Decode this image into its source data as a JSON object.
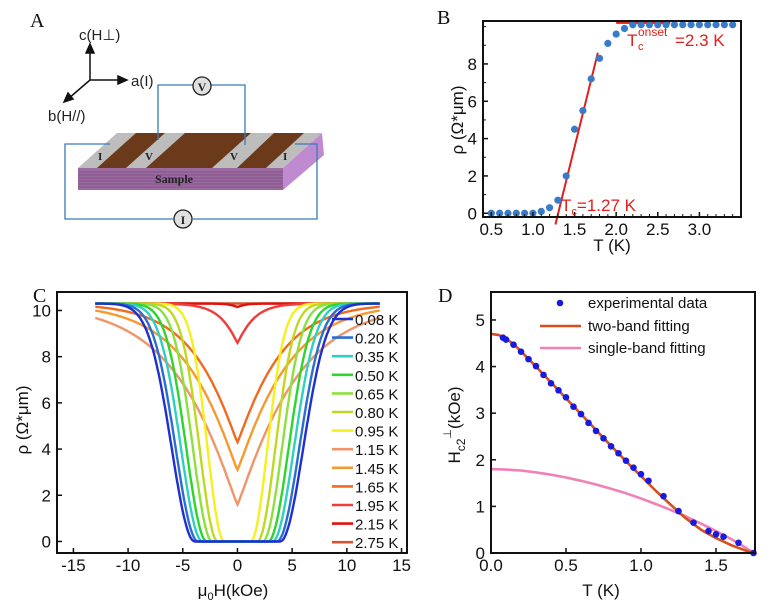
{
  "panels": {
    "A": {
      "letter": "A",
      "axes": {
        "c": "c(H⊥)",
        "a": "a(I)",
        "b": "b(H//)"
      },
      "sample_label": "Sample",
      "contacts": [
        "I",
        "V",
        "V",
        "I"
      ],
      "voltmeter": "V",
      "ammeter": "I"
    },
    "B": {
      "letter": "B"
    },
    "C": {
      "letter": "C"
    },
    "D": {
      "letter": "D"
    }
  },
  "chart_data": [
    {
      "id": "B",
      "type": "scatter",
      "title": "",
      "xlabel": "T (K)",
      "ylabel": "ρ (Ω*μm)",
      "xlim": [
        0.4,
        3.5
      ],
      "ylim": [
        -0.2,
        10.3
      ],
      "xticks": [
        0.5,
        1.0,
        1.5,
        2.0,
        2.5,
        3.0
      ],
      "xtick_labels": [
        "0.5",
        "1.0",
        "1.5",
        "2.0",
        "2.5",
        "3.0"
      ],
      "yticks": [
        0,
        2,
        4,
        6,
        8
      ],
      "ytick_labels": [
        "0",
        "2",
        "4",
        "6",
        "8"
      ],
      "marker_color": "#3a7bc8",
      "x": [
        0.5,
        0.6,
        0.7,
        0.8,
        0.9,
        1.0,
        1.1,
        1.2,
        1.3,
        1.4,
        1.5,
        1.6,
        1.7,
        1.8,
        1.9,
        2.0,
        2.1,
        2.2,
        2.3,
        2.4,
        2.5,
        2.6,
        2.7,
        2.8,
        2.9,
        3.0,
        3.1,
        3.2,
        3.3,
        3.4
      ],
      "y": [
        0,
        0,
        0,
        0,
        0,
        0,
        0.1,
        0.3,
        0.7,
        2.0,
        4.5,
        5.5,
        7.2,
        8.3,
        9.1,
        9.6,
        9.9,
        10.1,
        10.1,
        10.1,
        10.1,
        10.1,
        10.1,
        10.1,
        10.1,
        10.1,
        10.1,
        10.1,
        10.1,
        10.1
      ],
      "fit_lines": [
        {
          "name": "transition-fit",
          "color": "#e0201c",
          "x": [
            1.27,
            1.78
          ],
          "y": [
            -0.6,
            8.6
          ]
        },
        {
          "name": "onset-fit",
          "color": "#e0201c",
          "x": [
            2.0,
            2.65
          ],
          "y": [
            10.2,
            10.2
          ]
        }
      ],
      "annotations": [
        {
          "text": "T",
          "sub": "c",
          "value": "=1.27 K"
        },
        {
          "text": "T",
          "sub": "c",
          "sup": "onset",
          "value": "=2.3 K"
        }
      ]
    },
    {
      "id": "C",
      "type": "line",
      "title": "",
      "xlabel": "μ0H(kOe)",
      "xlabel_parts": {
        "mu": "μ",
        "sub": "0",
        "rest": "H(kOe)"
      },
      "ylabel": "ρ (Ω*μm)",
      "xlim": [
        -16.5,
        15.5
      ],
      "ylim": [
        -0.5,
        10.8
      ],
      "xticks": [
        -15,
        -10,
        -5,
        0,
        5,
        10,
        15
      ],
      "xtick_labels": [
        "-15",
        "-10",
        "-5",
        "0",
        "5",
        "10",
        "15"
      ],
      "yticks": [
        0,
        2,
        4,
        6,
        8,
        10
      ],
      "ytick_labels": [
        "0",
        "2",
        "4",
        "6",
        "8",
        "10"
      ],
      "x_range": [
        -13,
        13
      ],
      "rho_normal": 10.3,
      "legend_position": "right",
      "series": [
        {
          "name": "0.08 K",
          "color": "#1f2fd0",
          "min": 0.0,
          "hc": 3.9
        },
        {
          "name": "0.20 K",
          "color": "#2a6fd0",
          "min": 0.0,
          "hc": 3.6
        },
        {
          "name": "0.35 K",
          "color": "#2fd0c0",
          "min": 0.0,
          "hc": 3.2
        },
        {
          "name": "0.50 K",
          "color": "#2ed52e",
          "min": 0.0,
          "hc": 2.8
        },
        {
          "name": "0.65 K",
          "color": "#8ee040",
          "min": 0.0,
          "hc": 2.3
        },
        {
          "name": "0.80 K",
          "color": "#c0d820",
          "min": 0.0,
          "hc": 1.8
        },
        {
          "name": "0.95 K",
          "color": "#f5f020",
          "min": 0.0,
          "hc": 1.2
        },
        {
          "name": "1.15 K",
          "color": "#f0956a",
          "min": 1.6,
          "hc": 0.0
        },
        {
          "name": "1.45 K",
          "color": "#f59a30",
          "min": 3.1,
          "hc": 0.0
        },
        {
          "name": "1.65 K",
          "color": "#f06a20",
          "min": 4.3,
          "hc": 0.0
        },
        {
          "name": "1.95 K",
          "color": "#f03c3c",
          "min": 8.6,
          "hc": 0.0
        },
        {
          "name": "2.15 K",
          "color": "#e01010",
          "min": 10.15,
          "hc": 0.0
        },
        {
          "name": "2.75 K",
          "color": "#d05530",
          "min": 10.3,
          "hc": 0.0
        }
      ]
    },
    {
      "id": "D",
      "type": "scatter",
      "title": "",
      "xlabel": "T (K)",
      "ylabel": "H⊥c2 (kOe)",
      "ylabel_parts": {
        "main": "H",
        "sub": "c2",
        "sup": "⊥",
        "rest": "(kOe)"
      },
      "xlim": [
        0.0,
        1.76
      ],
      "ylim": [
        0,
        5.6
      ],
      "xticks": [
        0.0,
        0.5,
        1.0,
        1.5
      ],
      "xtick_labels": [
        "0.0",
        "0.5",
        "1.0",
        "1.5"
      ],
      "yticks": [
        0,
        1,
        2,
        3,
        4,
        5
      ],
      "ytick_labels": [
        "0",
        "1",
        "2",
        "3",
        "4",
        "5"
      ],
      "legend_position": "top-right",
      "legend": [
        {
          "label": "experimental data",
          "kind": "marker",
          "color": "#1a1adc"
        },
        {
          "label": "two-band fitting",
          "kind": "line",
          "color": "#d4501c"
        },
        {
          "label": "single-band fitting",
          "kind": "line",
          "color": "#f080b8"
        }
      ],
      "experimental": {
        "x": [
          0.08,
          0.1,
          0.15,
          0.2,
          0.25,
          0.3,
          0.35,
          0.4,
          0.45,
          0.5,
          0.55,
          0.6,
          0.65,
          0.7,
          0.75,
          0.8,
          0.85,
          0.9,
          0.95,
          1.0,
          1.05,
          1.15,
          1.25,
          1.35,
          1.45,
          1.5,
          1.55,
          1.65,
          1.75
        ],
        "y": [
          4.62,
          4.58,
          4.47,
          4.32,
          4.16,
          4.01,
          3.82,
          3.64,
          3.49,
          3.34,
          3.14,
          2.98,
          2.79,
          2.62,
          2.46,
          2.29,
          2.14,
          1.98,
          1.83,
          1.69,
          1.55,
          1.22,
          0.9,
          0.65,
          0.47,
          0.4,
          0.35,
          0.22,
          0.0
        ]
      },
      "two_band": {
        "x": [
          0.0,
          0.05,
          0.1,
          0.15,
          0.2,
          0.3,
          0.4,
          0.5,
          0.6,
          0.7,
          0.8,
          0.9,
          1.0,
          1.1,
          1.2,
          1.3,
          1.4,
          1.5,
          1.6,
          1.7,
          1.75
        ],
        "y": [
          4.7,
          4.68,
          4.6,
          4.48,
          4.33,
          4.0,
          3.66,
          3.32,
          2.98,
          2.64,
          2.3,
          1.97,
          1.65,
          1.33,
          1.03,
          0.74,
          0.5,
          0.32,
          0.17,
          0.05,
          0.0
        ]
      },
      "single_band": {
        "x": [
          0.0,
          0.1,
          0.2,
          0.3,
          0.4,
          0.5,
          0.6,
          0.7,
          0.8,
          0.9,
          1.0,
          1.1,
          1.2,
          1.3,
          1.4,
          1.5,
          1.6,
          1.7,
          1.75
        ],
        "y": [
          1.8,
          1.79,
          1.77,
          1.73,
          1.68,
          1.62,
          1.55,
          1.47,
          1.38,
          1.28,
          1.17,
          1.05,
          0.92,
          0.78,
          0.63,
          0.47,
          0.3,
          0.11,
          0.0
        ]
      }
    }
  ]
}
